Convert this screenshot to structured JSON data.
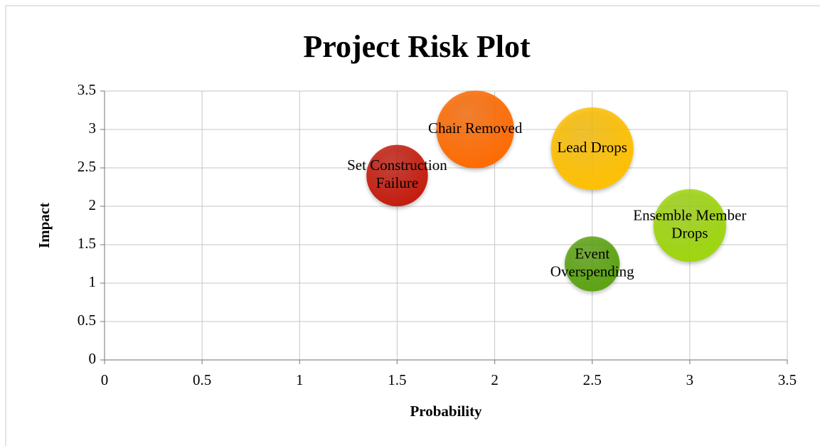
{
  "chart_data": {
    "type": "bubble",
    "title": "Project Risk Plot",
    "x_label": "Probability",
    "y_label": "Impact",
    "x": [
      1.5,
      1.9,
      2.5,
      3,
      2.5
    ],
    "values": [
      2.4,
      3,
      2.75,
      1.75,
      1.25
    ],
    "sizes": [
      5,
      8,
      9,
      7,
      4
    ],
    "colors": [
      "#c41a0c",
      "#ff6a00",
      "#ffc000",
      "#9ed60c",
      "#5ba30f"
    ],
    "labels": [
      [
        "Set Construction",
        "Failure"
      ],
      [
        "Chair Removed"
      ],
      [
        "Lead Drops"
      ],
      [
        "Ensemble Member",
        "Drops"
      ],
      [
        "Event",
        "Overspending"
      ]
    ],
    "xlim": [
      0,
      3.5
    ],
    "xticks": [
      0,
      0.5,
      1,
      1.5,
      2,
      2.5,
      3,
      3.5
    ],
    "ylim": [
      0,
      3.5
    ],
    "yticks": [
      0,
      0.5,
      1,
      1.5,
      2,
      2.5,
      3,
      3.5
    ],
    "grid": true
  }
}
